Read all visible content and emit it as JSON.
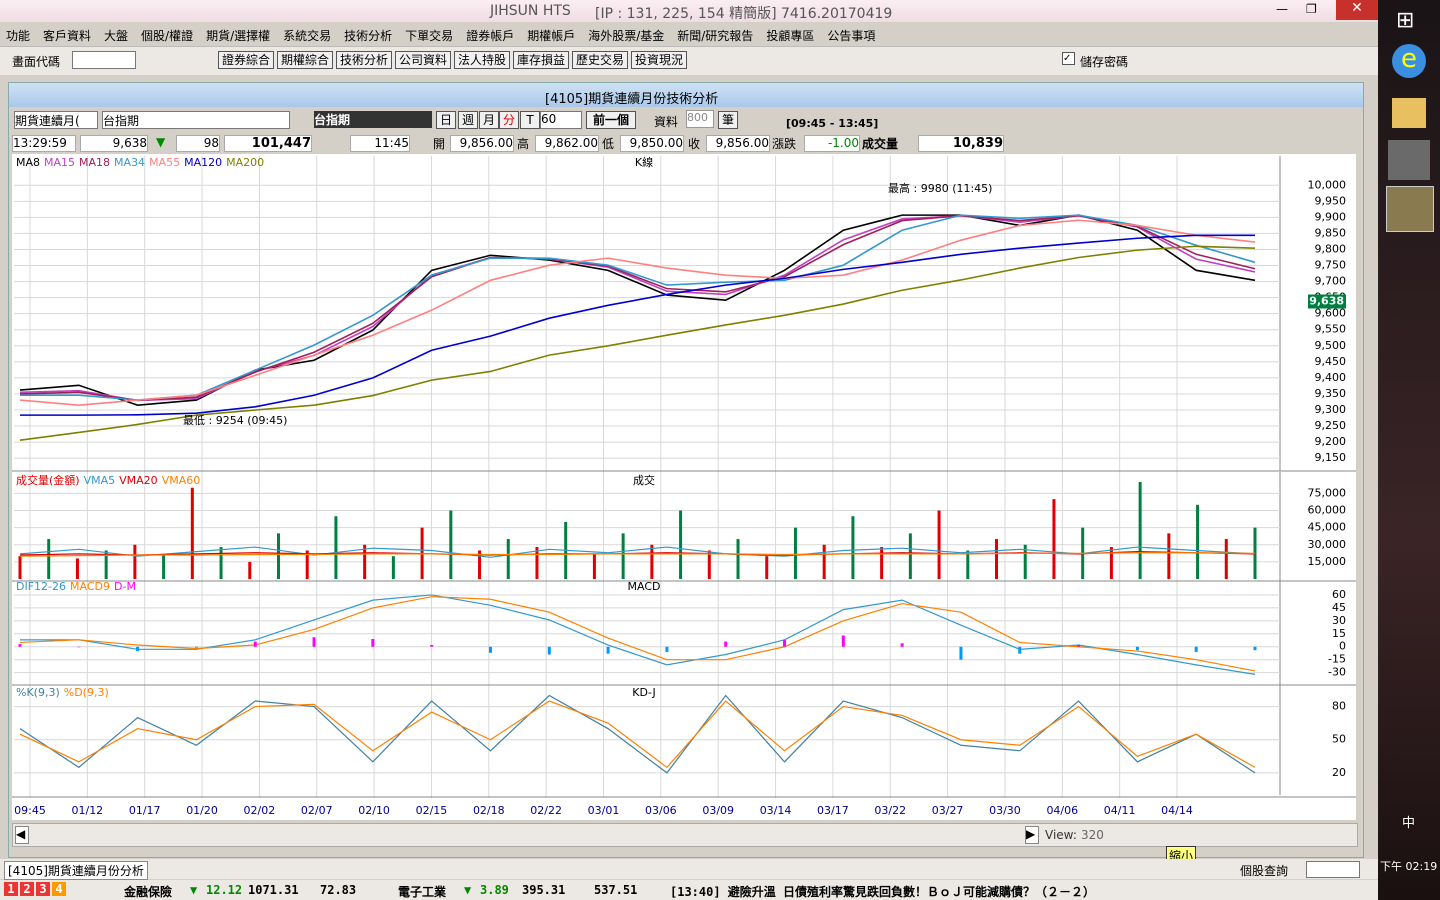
{
  "app_name": "JIHSUN HTS",
  "window_info": "[IP : 131, 225, 154 精簡版] 7416.20170419",
  "menu": [
    "功能",
    "客戶資料",
    "大盤",
    "個股/權證",
    "期貨/選擇權",
    "系統交易",
    "技術分析",
    "下單交易",
    "證券帳戶",
    "期權帳戶",
    "海外股票/基金",
    "新聞/研究報告",
    "投顧專區",
    "公告事項"
  ],
  "toolbar": {
    "code_label": "畫面代碼",
    "buttons": [
      "證券綜合",
      "期權綜合",
      "技術分析",
      "公司資料",
      "法人持股",
      "庫存損益",
      "歷史交易",
      "投資現況"
    ],
    "save_password": "儲存密碼"
  },
  "panel": {
    "title": "[4105]期貨連續月份技術分析",
    "controls": {
      "series_select": "期貨連續月(",
      "symbol_input": "台指期",
      "symbol_name": "台指期",
      "periods": [
        "日",
        "週",
        "月",
        "分",
        "T"
      ],
      "interval": "60",
      "prev": "前一個",
      "data_label": "資料",
      "count": "800",
      "count_unit": "筆",
      "session": "[09:45 - 13:45]"
    },
    "quote": {
      "time": "13:29:59",
      "price": "9,638",
      "arrow": "▼",
      "change": "98",
      "total_volume": "101,447",
      "last_time": "11:45",
      "open_label": "開",
      "open": "9,856.00",
      "high_label": "高",
      "high": "9,862.00",
      "low_label": "低",
      "low": "9,850.00",
      "close_label": "收",
      "close": "9,856.00",
      "change_label": "漲跌",
      "change2": "-1.00",
      "volume_label": "成交量",
      "volume": "10,839"
    }
  },
  "chart_data": [
    {
      "type": "line",
      "title": "K線",
      "ylim": [
        9110,
        10060
      ],
      "yticks": [
        {
          "value": 10000,
          "label": "10,000"
        },
        {
          "value": 9950,
          "label": "9,950"
        },
        {
          "value": 9900,
          "label": "9,900"
        },
        {
          "value": 9850,
          "label": "9,850"
        },
        {
          "value": 9800,
          "label": "9,800"
        },
        {
          "value": 9750,
          "label": "9,750"
        },
        {
          "value": 9700,
          "label": "9,700"
        },
        {
          "value": 9650,
          "label": "9,650"
        },
        {
          "value": 9600,
          "label": "9,600"
        },
        {
          "value": 9550,
          "label": "9,550"
        },
        {
          "value": 9500,
          "label": "9,500"
        },
        {
          "value": 9450,
          "label": "9,450"
        },
        {
          "value": 9400,
          "label": "9,400"
        },
        {
          "value": 9350,
          "label": "9,350"
        },
        {
          "value": 9300,
          "label": "9,300"
        },
        {
          "value": 9250,
          "label": "9,250"
        },
        {
          "value": 9200,
          "label": "9,200"
        },
        {
          "value": 9150,
          "label": "9,150"
        }
      ],
      "grid": true,
      "annotations": [
        "最高 : 9980 (11:45)",
        "最低 : 9254 (09:45)"
      ],
      "last_price": 9638,
      "last_price_label": "9,638",
      "series": [
        {
          "name": "MA8",
          "color": "#000000",
          "values": [
            9362,
            9377,
            9315,
            9331,
            9424,
            9455,
            9549,
            9735,
            9782,
            9767,
            9735,
            9658,
            9642,
            9735,
            9860,
            9907,
            9907,
            9875,
            9907,
            9860,
            9735,
            9704
          ]
        },
        {
          "name": "MA15",
          "color": "#c040c0",
          "values": [
            9355,
            9360,
            9330,
            9335,
            9420,
            9470,
            9560,
            9720,
            9775,
            9770,
            9745,
            9670,
            9660,
            9720,
            9830,
            9895,
            9905,
            9885,
            9905,
            9870,
            9770,
            9730
          ]
        },
        {
          "name": "MA18",
          "color": "#a0205a",
          "values": [
            9350,
            9355,
            9330,
            9340,
            9418,
            9480,
            9570,
            9715,
            9775,
            9772,
            9748,
            9678,
            9668,
            9715,
            9815,
            9890,
            9905,
            9890,
            9905,
            9872,
            9785,
            9740
          ]
        },
        {
          "name": "MA34",
          "color": "#3399cc",
          "values": [
            9346,
            9346,
            9331,
            9346,
            9424,
            9502,
            9595,
            9720,
            9773,
            9773,
            9751,
            9689,
            9698,
            9704,
            9751,
            9860,
            9907,
            9897,
            9907,
            9875,
            9813,
            9760
          ]
        },
        {
          "name": "MA55",
          "color": "#ff8080",
          "values": [
            9331,
            9315,
            9331,
            9346,
            9408,
            9471,
            9533,
            9611,
            9704,
            9751,
            9773,
            9742,
            9720,
            9710,
            9720,
            9767,
            9829,
            9875,
            9891,
            9875,
            9844,
            9823
          ]
        },
        {
          "name": "MA120",
          "color": "#0000cc",
          "values": [
            9284,
            9284,
            9285,
            9290,
            9310,
            9346,
            9400,
            9486,
            9530,
            9586,
            9626,
            9660,
            9689,
            9710,
            9738,
            9760,
            9785,
            9804,
            9820,
            9835,
            9844,
            9844
          ]
        },
        {
          "name": "MA200",
          "color": "#808000",
          "values": [
            9206,
            9230,
            9255,
            9284,
            9300,
            9315,
            9345,
            9393,
            9420,
            9471,
            9500,
            9533,
            9565,
            9595,
            9630,
            9673,
            9705,
            9742,
            9775,
            9798,
            9810,
            9804
          ]
        }
      ]
    },
    {
      "type": "line",
      "title": "成交",
      "ylim": [
        0,
        85000
      ],
      "yticks": [
        {
          "value": 75000,
          "label": "75,000"
        },
        {
          "value": 60000,
          "label": "60,000"
        },
        {
          "value": 45000,
          "label": "45,000"
        },
        {
          "value": 30000,
          "label": "30,000"
        },
        {
          "value": 15000,
          "label": "15,000"
        }
      ],
      "grid": true,
      "series": [
        {
          "name": "成交量(金額)",
          "type": "bar",
          "colors": [
            "#e00000",
            "#008040"
          ],
          "values": [
            20000,
            35000,
            18000,
            25000,
            30000,
            22000,
            80000,
            28000,
            15000,
            40000,
            25000,
            55000,
            30000,
            20000,
            45000,
            60000,
            25000,
            35000,
            28000,
            50000,
            22000,
            40000,
            30000,
            60000,
            25000,
            35000,
            20000,
            45000,
            30000,
            55000,
            28000,
            40000,
            60000,
            25000,
            35000,
            30000,
            70000,
            45000,
            28000,
            85000,
            40000,
            65000,
            35000,
            45000
          ]
        },
        {
          "name": "VMA5",
          "color": "#3399cc",
          "values": [
            22000,
            26000,
            20000,
            24000,
            28000,
            21000,
            27000,
            25000,
            19000,
            26000,
            23000,
            28000,
            22000,
            20000,
            25000,
            27000,
            23000,
            26000,
            22000,
            28000,
            25000,
            22000
          ]
        },
        {
          "name": "VMA20",
          "color": "#e00000",
          "values": [
            21000,
            22000,
            21000,
            22000,
            23000,
            22000,
            23000,
            22000,
            21000,
            22000,
            22000,
            23000,
            22000,
            21000,
            22000,
            23000,
            22000,
            23000,
            22000,
            24000,
            23000,
            22000
          ]
        },
        {
          "name": "VMA60",
          "color": "#ff8000",
          "values": [
            20000,
            20500,
            21000,
            21000,
            21500,
            21500,
            22000,
            22000,
            21500,
            21500,
            22000,
            22000,
            22000,
            21500,
            22000,
            22000,
            22000,
            22500,
            22500,
            23000,
            23000,
            22500
          ]
        }
      ]
    },
    {
      "type": "line",
      "title": "MACD",
      "ylim": [
        -42,
        75
      ],
      "yticks": [
        60,
        45,
        30,
        15,
        0,
        -15,
        -30
      ],
      "grid": true,
      "series": [
        {
          "name": "DIF12-26",
          "color": "#3399cc",
          "values": [
            8,
            8,
            -3,
            -3,
            8,
            31,
            54,
            60,
            48,
            31,
            2,
            -21,
            -9,
            8,
            43,
            54,
            25,
            -3,
            2,
            -9,
            -21,
            -32
          ]
        },
        {
          "name": "MACD9",
          "color": "#ff8000",
          "values": [
            5,
            8,
            2,
            -2,
            2,
            20,
            45,
            58,
            55,
            40,
            10,
            -15,
            -15,
            0,
            30,
            50,
            40,
            5,
            0,
            -5,
            -15,
            -28
          ]
        },
        {
          "name": "D-M",
          "type": "bar",
          "colors": [
            "#ff00ff",
            "#0099ff"
          ],
          "values": [
            3,
            0,
            -5,
            -1,
            6,
            11,
            9,
            2,
            -7,
            -9,
            -8,
            -6,
            6,
            8,
            13,
            4,
            -15,
            -8,
            2,
            -4,
            -6,
            -4
          ]
        }
      ]
    },
    {
      "type": "line",
      "title": "KD-J",
      "ylim": [
        0,
        95
      ],
      "yticks": [
        80,
        50,
        20
      ],
      "grid": true,
      "series": [
        {
          "name": "%K(9,3)",
          "color": "#4080a0",
          "values": [
            60,
            25,
            70,
            45,
            85,
            80,
            30,
            85,
            40,
            90,
            60,
            20,
            90,
            30,
            85,
            70,
            45,
            40,
            85,
            30,
            55,
            20
          ]
        },
        {
          "name": "%D(9,3)",
          "color": "#ff8000",
          "values": [
            55,
            30,
            60,
            50,
            80,
            82,
            40,
            75,
            50,
            85,
            65,
            25,
            85,
            40,
            80,
            72,
            50,
            45,
            80,
            35,
            55,
            25
          ]
        }
      ]
    }
  ],
  "time_axis": [
    "09:45",
    "01/12",
    "01/17",
    "01/20",
    "02/02",
    "02/07",
    "02/10",
    "02/15",
    "02/18",
    "02/22",
    "03/01",
    "03/06",
    "03/09",
    "03/14",
    "03/17",
    "03/22",
    "03/27",
    "03/30",
    "04/06",
    "04/11",
    "04/14"
  ],
  "scrollbar": {
    "view_label": "View:",
    "view_value": "320",
    "tooltip": "縮小"
  },
  "tabs": [
    "[4105]期貨連續月份分析"
  ],
  "search_label": "個股查詢",
  "status": {
    "pages": [
      "1",
      "2",
      "3",
      "4"
    ],
    "sector1": {
      "name": "金融保險",
      "arrow": "▼",
      "change": "12.12",
      "index": "1071.31",
      "amount": "72.83"
    },
    "sector2": {
      "name": "電子工業",
      "arrow": "▼",
      "change": "3.89",
      "index": "395.31",
      "amount": "537.51"
    },
    "news": "[13:40] 避險升溫 日債殖利率驚見跌回負數！ＢｏＪ可能減購債？（２－２）"
  },
  "taskbar": {
    "ime": "中",
    "time": "下午 02:19"
  }
}
